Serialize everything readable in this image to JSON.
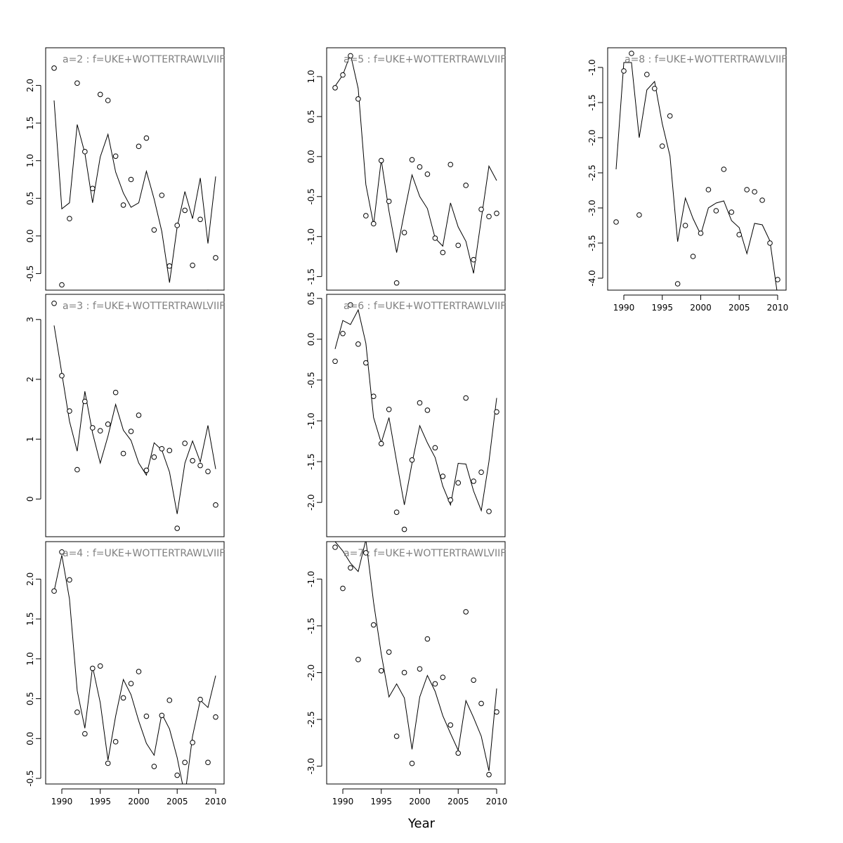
{
  "xlabel": "Year",
  "chart_data": [
    {
      "type": "line",
      "title": "a=2  :  f=UKE+WOTTERTRAWLVIIF",
      "x": [
        1989,
        1990,
        1991,
        1992,
        1993,
        1994,
        1995,
        1996,
        1997,
        1998,
        1999,
        2000,
        2001,
        2002,
        2003,
        2004,
        2005,
        2006,
        2007,
        2008,
        2009,
        2010
      ],
      "ylim": [
        -0.72,
        2.5
      ],
      "yticks": [
        -0.5,
        0.0,
        0.5,
        1.0,
        1.5,
        2.0
      ],
      "yticklabels": [
        "-0.5",
        "0.0",
        "0.5",
        "1.0",
        "1.5",
        "2.0"
      ],
      "xticks": [
        1990,
        1995,
        2000,
        2005,
        2010
      ],
      "xticklabels": [
        "1990",
        "1995",
        "2000",
        "2005",
        "2010"
      ],
      "show_xaxis": false,
      "series": [
        {
          "style": "line",
          "values": [
            1.8,
            0.36,
            0.44,
            1.48,
            1.1,
            0.44,
            1.05,
            1.35,
            0.85,
            0.57,
            0.38,
            0.44,
            0.86,
            0.49,
            0.06,
            -0.62,
            0.12,
            0.59,
            0.23,
            0.77,
            -0.1,
            0.79
          ]
        },
        {
          "style": "points",
          "values": [
            2.23,
            -0.65,
            0.23,
            2.03,
            1.12,
            0.63,
            1.88,
            1.8,
            1.06,
            0.41,
            0.75,
            1.19,
            1.3,
            0.08,
            0.54,
            -0.4,
            0.14,
            0.34,
            -0.39,
            0.22,
            -0.75,
            -0.29
          ]
        }
      ]
    },
    {
      "type": "line",
      "title": "a=3  :  f=UKE+WOTTERTRAWLVIIF",
      "x": [
        1989,
        1990,
        1991,
        1992,
        1993,
        1994,
        1995,
        1996,
        1997,
        1998,
        1999,
        2000,
        2001,
        2002,
        2003,
        2004,
        2005,
        2006,
        2007,
        2008,
        2009,
        2010
      ],
      "ylim": [
        -0.63,
        3.42
      ],
      "yticks": [
        0,
        1,
        2,
        3
      ],
      "yticklabels": [
        "0",
        "1",
        "2",
        "3"
      ],
      "xticks": [
        1990,
        1995,
        2000,
        2005,
        2010
      ],
      "xticklabels": [
        "1990",
        "1995",
        "2000",
        "2005",
        "2010"
      ],
      "show_xaxis": false,
      "series": [
        {
          "style": "line",
          "values": [
            2.9,
            2.1,
            1.3,
            0.8,
            1.8,
            1.1,
            0.6,
            1.05,
            1.58,
            1.15,
            0.98,
            0.6,
            0.4,
            0.94,
            0.82,
            0.45,
            -0.25,
            0.6,
            0.97,
            0.62,
            1.23,
            0.5
          ]
        },
        {
          "style": "points",
          "values": [
            3.27,
            2.06,
            1.47,
            0.49,
            1.63,
            1.19,
            1.14,
            1.25,
            1.78,
            0.76,
            1.13,
            1.4,
            0.48,
            0.7,
            0.84,
            0.81,
            -0.49,
            0.93,
            0.64,
            0.56,
            0.46,
            -0.1
          ]
        }
      ]
    },
    {
      "type": "line",
      "title": "a=4  :  f=UKE+WOTTERTRAWLVIIF",
      "x": [
        1989,
        1990,
        1991,
        1992,
        1993,
        1994,
        1995,
        1996,
        1997,
        1998,
        1999,
        2000,
        2001,
        2002,
        2003,
        2004,
        2005,
        2006,
        2007,
        2008,
        2009,
        2010
      ],
      "ylim": [
        -0.57,
        2.47
      ],
      "yticks": [
        -0.5,
        0.0,
        0.5,
        1.0,
        1.5,
        2.0
      ],
      "yticklabels": [
        "-0.5",
        "0.0",
        "0.5",
        "1.0",
        "1.5",
        "2.0"
      ],
      "xticks": [
        1990,
        1995,
        2000,
        2005,
        2010
      ],
      "xticklabels": [
        "1990",
        "1995",
        "2000",
        "2005",
        "2010"
      ],
      "show_xaxis": true,
      "series": [
        {
          "style": "line",
          "values": [
            1.85,
            2.3,
            1.75,
            0.6,
            0.13,
            0.9,
            0.45,
            -0.27,
            0.28,
            0.74,
            0.55,
            0.22,
            -0.06,
            -0.21,
            0.31,
            0.12,
            -0.24,
            -0.72,
            0.03,
            0.48,
            0.39,
            0.79
          ]
        },
        {
          "style": "points",
          "values": [
            1.85,
            2.34,
            1.99,
            0.33,
            0.06,
            0.88,
            0.91,
            -0.31,
            -0.04,
            0.51,
            0.69,
            0.84,
            0.28,
            -0.35,
            0.29,
            0.48,
            -0.46,
            -0.3,
            -0.05,
            0.49,
            -0.3,
            0.27
          ]
        }
      ]
    },
    {
      "type": "line",
      "title": "a=5  :  f=UKE+WOTTERTRAWLVIIF",
      "x": [
        1989,
        1990,
        1991,
        1992,
        1993,
        1994,
        1995,
        1996,
        1997,
        1998,
        1999,
        2000,
        2001,
        2002,
        2003,
        2004,
        2005,
        2006,
        2007,
        2008,
        2009,
        2010
      ],
      "ylim": [
        -1.67,
        1.36
      ],
      "yticks": [
        -1.5,
        -1.0,
        -0.5,
        0.0,
        0.5,
        1.0
      ],
      "yticklabels": [
        "-1.5",
        "-1.0",
        "-0.5",
        "0.0",
        "0.5",
        "1.0"
      ],
      "xticks": [
        1990,
        1995,
        2000,
        2005,
        2010
      ],
      "xticklabels": [
        "1990",
        "1995",
        "2000",
        "2005",
        "2010"
      ],
      "show_xaxis": false,
      "series": [
        {
          "style": "line",
          "values": [
            0.88,
            1.02,
            1.28,
            0.85,
            -0.35,
            -0.85,
            -0.04,
            -0.68,
            -1.2,
            -0.7,
            -0.23,
            -0.5,
            -0.65,
            -1.02,
            -1.12,
            -0.58,
            -0.88,
            -1.06,
            -1.46,
            -0.78,
            -0.12,
            -0.3
          ]
        },
        {
          "style": "points",
          "values": [
            0.86,
            1.02,
            1.26,
            0.72,
            -0.74,
            -0.84,
            -0.05,
            -0.56,
            -1.58,
            -0.95,
            -0.04,
            -0.13,
            -0.22,
            -1.02,
            -1.2,
            -0.1,
            -1.11,
            -0.36,
            -1.29,
            -0.66,
            -0.75,
            -0.71
          ]
        }
      ]
    },
    {
      "type": "line",
      "title": "a=6  :  f=UKE+WOTTERTRAWLVIIF",
      "x": [
        1989,
        1990,
        1991,
        1992,
        1993,
        1994,
        1995,
        1996,
        1997,
        1998,
        1999,
        2000,
        2001,
        2002,
        2003,
        2004,
        2005,
        2006,
        2007,
        2008,
        2009,
        2010
      ],
      "ylim": [
        -2.42,
        0.55
      ],
      "yticks": [
        -2.0,
        -1.5,
        -1.0,
        -0.5,
        0.0,
        0.5
      ],
      "yticklabels": [
        "-2.0",
        "-1.5",
        "-1.0",
        "-0.5",
        "0.0",
        "0.5"
      ],
      "xticks": [
        1990,
        1995,
        2000,
        2005,
        2010
      ],
      "xticklabels": [
        "1990",
        "1995",
        "2000",
        "2005",
        "2010"
      ],
      "show_xaxis": false,
      "series": [
        {
          "style": "line",
          "values": [
            -0.12,
            0.23,
            0.18,
            0.36,
            -0.05,
            -0.96,
            -1.27,
            -0.96,
            -1.5,
            -2.03,
            -1.52,
            -1.06,
            -1.27,
            -1.45,
            -1.8,
            -2.03,
            -1.52,
            -1.53,
            -1.86,
            -2.1,
            -1.5,
            -0.72
          ]
        },
        {
          "style": "points",
          "values": [
            -0.27,
            0.07,
            0.42,
            -0.06,
            -0.29,
            -0.7,
            -1.28,
            -0.86,
            -2.12,
            -2.33,
            -1.48,
            -0.78,
            -0.87,
            -1.33,
            -1.68,
            -1.97,
            -1.76,
            -0.72,
            -1.74,
            -1.63,
            -2.11,
            -0.89
          ]
        }
      ]
    },
    {
      "type": "line",
      "title": "a=7  :  f=UKE+WOTTERTRAWLVIIF",
      "x": [
        1989,
        1990,
        1991,
        1992,
        1993,
        1994,
        1995,
        1996,
        1997,
        1998,
        1999,
        2000,
        2001,
        2002,
        2003,
        2004,
        2005,
        2006,
        2007,
        2008,
        2009,
        2010
      ],
      "ylim": [
        -3.19,
        -0.6
      ],
      "yticks": [
        -3.0,
        -2.5,
        -2.0,
        -1.5,
        -1.0
      ],
      "yticklabels": [
        "-3.0",
        "-2.5",
        "-2.0",
        "-1.5",
        "-1.0"
      ],
      "xticks": [
        1990,
        1995,
        2000,
        2005,
        2010
      ],
      "xticklabels": [
        "1990",
        "1995",
        "2000",
        "2005",
        "2010"
      ],
      "show_xaxis": true,
      "series": [
        {
          "style": "line",
          "values": [
            -0.6,
            -0.7,
            -0.83,
            -0.92,
            -0.58,
            -1.25,
            -1.8,
            -2.26,
            -2.12,
            -2.27,
            -2.82,
            -2.26,
            -2.03,
            -2.2,
            -2.46,
            -2.65,
            -2.83,
            -2.3,
            -2.48,
            -2.68,
            -3.05,
            -2.17
          ]
        },
        {
          "style": "points",
          "values": [
            -0.66,
            -1.1,
            -0.88,
            -1.86,
            -0.72,
            -1.49,
            -1.98,
            -1.78,
            -2.68,
            -2.0,
            -2.97,
            -1.96,
            -1.64,
            -2.12,
            -2.05,
            -2.56,
            -2.86,
            -1.35,
            -2.08,
            -2.33,
            -3.09,
            -2.42
          ]
        }
      ]
    },
    {
      "type": "line",
      "title": "a=8  :  f=UKE+WOTTERTRAWLVIIF",
      "x": [
        1989,
        1990,
        1991,
        1992,
        1993,
        1994,
        1995,
        1996,
        1997,
        1998,
        1999,
        2000,
        2001,
        2002,
        2003,
        2004,
        2005,
        2006,
        2007,
        2008,
        2009,
        2010
      ],
      "ylim": [
        -4.17,
        -0.72
      ],
      "yticks": [
        -4.0,
        -3.5,
        -3.0,
        -2.5,
        -2.0,
        -1.5,
        -1.0
      ],
      "yticklabels": [
        "-4.0",
        "-3.5",
        "-3.0",
        "-2.5",
        "-2.0",
        "-1.5",
        "-1.0"
      ],
      "xticks": [
        1990,
        1995,
        2000,
        2005,
        2010
      ],
      "xticklabels": [
        "1990",
        "1995",
        "2000",
        "2005",
        "2010"
      ],
      "show_xaxis": true,
      "series": [
        {
          "style": "line",
          "values": [
            -2.45,
            -0.93,
            -0.93,
            -2.0,
            -1.32,
            -1.2,
            -1.8,
            -2.26,
            -3.48,
            -2.86,
            -3.15,
            -3.38,
            -3.0,
            -2.93,
            -2.9,
            -3.18,
            -3.28,
            -3.65,
            -3.22,
            -3.24,
            -3.47,
            -4.25
          ]
        },
        {
          "style": "points",
          "values": [
            -3.2,
            -1.05,
            -0.8,
            -3.1,
            -1.1,
            -1.3,
            -2.12,
            -1.69,
            -4.08,
            -3.25,
            -3.69,
            -3.36,
            -2.74,
            -3.04,
            -2.45,
            -3.06,
            -3.38,
            -2.74,
            -2.77,
            -2.89,
            -3.5,
            -4.02
          ]
        }
      ]
    }
  ]
}
